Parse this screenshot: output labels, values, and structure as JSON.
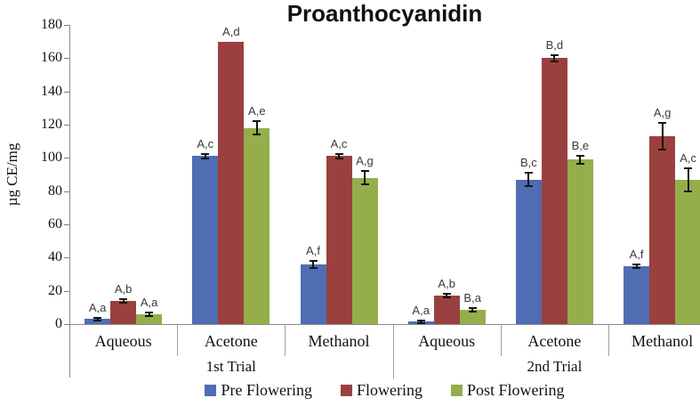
{
  "title": "Proanthocyanidin",
  "y_axis_label": "µg CE/mg",
  "chart_data": {
    "type": "bar",
    "title": "Proanthocyanidin",
    "xlabel": "",
    "ylabel": "µg CE/mg",
    "ylim": [
      0,
      180
    ],
    "ytick_step": 20,
    "grid": false,
    "legend_position": "bottom",
    "categories": [
      "Aqueous",
      "Acetone",
      "Methanol",
      "Aqueous",
      "Acetone",
      "Methanol"
    ],
    "trial_groups": [
      {
        "label": "1st Trial",
        "first_category": 0,
        "last_category": 2
      },
      {
        "label": "2nd Trial",
        "first_category": 3,
        "last_category": 5
      }
    ],
    "series": [
      {
        "name": "Pre Flowering",
        "color": "#4F6DB3",
        "values": [
          3,
          101,
          36,
          1.5,
          87,
          35
        ],
        "errors": [
          1,
          1.5,
          2,
          0.8,
          4,
          1
        ],
        "point_labels": [
          "A,a",
          "A,c",
          "A,f",
          "A,a",
          "B,c",
          "A,f"
        ]
      },
      {
        "name": "Flowering",
        "color": "#9A403E",
        "values": [
          14,
          170,
          101,
          17,
          160,
          113
        ],
        "errors": [
          1,
          0,
          1.5,
          1,
          2,
          8
        ],
        "point_labels": [
          "A,b",
          "A,d",
          "A,c",
          "A,b",
          "B,d",
          "A,g"
        ]
      },
      {
        "name": "Post Flowering",
        "color": "#94AE4C",
        "values": [
          6,
          118,
          88,
          8.5,
          99,
          87
        ],
        "errors": [
          1,
          4,
          4,
          1,
          2.5,
          7
        ],
        "point_labels": [
          "A,a",
          "A,e",
          "A,g",
          "B,a",
          "B,e",
          "A,c"
        ]
      }
    ]
  }
}
